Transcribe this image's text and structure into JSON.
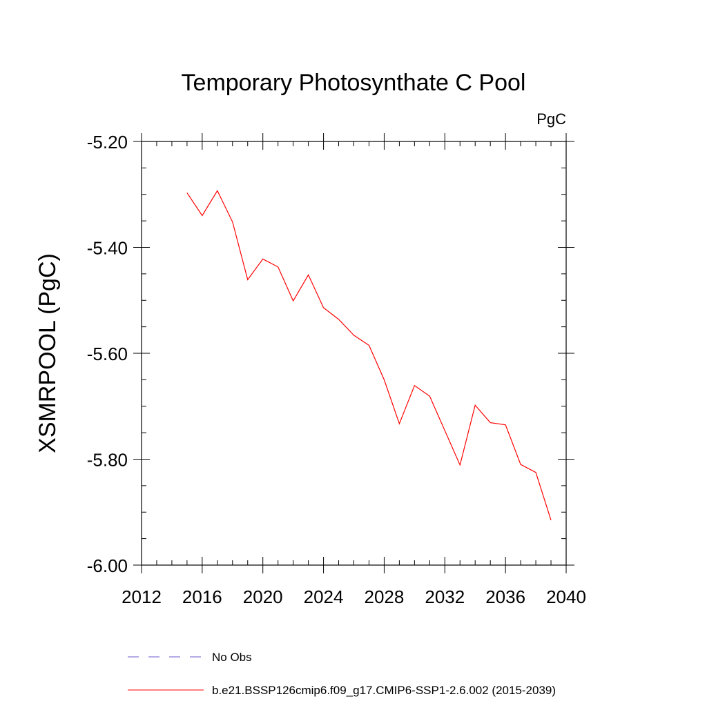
{
  "chart_data": {
    "type": "line",
    "title": "Temporary Photosynthate C Pool",
    "units_label": "PgC",
    "ylabel": "XSMRPOOL  (PgC)",
    "xlabel": "",
    "xlim": [
      2012,
      2040
    ],
    "ylim": [
      -6.0,
      -5.2
    ],
    "x_ticks": [
      2012,
      2016,
      2020,
      2024,
      2028,
      2032,
      2036,
      2040
    ],
    "x_tick_labels": [
      "2012",
      "2016",
      "2020",
      "2024",
      "2028",
      "2032",
      "2036",
      "2040"
    ],
    "y_ticks": [
      -6.0,
      -5.8,
      -5.6,
      -5.4,
      -5.2
    ],
    "y_tick_labels": [
      "-6.00",
      "-5.80",
      "-5.60",
      "-5.40",
      "-5.20"
    ],
    "x_minor_step": 1,
    "y_minor_step": 0.05,
    "grid": false,
    "series": [
      {
        "name": "b.e21.BSSP126cmip6.f09_g17.CMIP6-SSP1-2.6.002 (2015-2039)",
        "color": "#ff0000",
        "style": "solid",
        "x": [
          2015,
          2016,
          2017,
          2018,
          2019,
          2020,
          2021,
          2022,
          2023,
          2024,
          2025,
          2026,
          2027,
          2028,
          2029,
          2030,
          2031,
          2032,
          2033,
          2034,
          2035,
          2036,
          2037,
          2038,
          2039
        ],
        "values": [
          -5.297,
          -5.34,
          -5.293,
          -5.352,
          -5.461,
          -5.422,
          -5.437,
          -5.501,
          -5.452,
          -5.514,
          -5.536,
          -5.566,
          -5.585,
          -5.65,
          -5.733,
          -5.661,
          -5.681,
          -5.746,
          -5.811,
          -5.698,
          -5.731,
          -5.735,
          -5.81,
          -5.825,
          -5.915
        ]
      }
    ],
    "legend": [
      {
        "label": "No Obs",
        "color": "#6a5acd",
        "style": "dashed"
      },
      {
        "label": "b.e21.BSSP126cmip6.f09_g17.CMIP6-SSP1-2.6.002 (2015-2039)",
        "color": "#ff0000",
        "style": "solid"
      }
    ],
    "legend_position": "bottom"
  }
}
